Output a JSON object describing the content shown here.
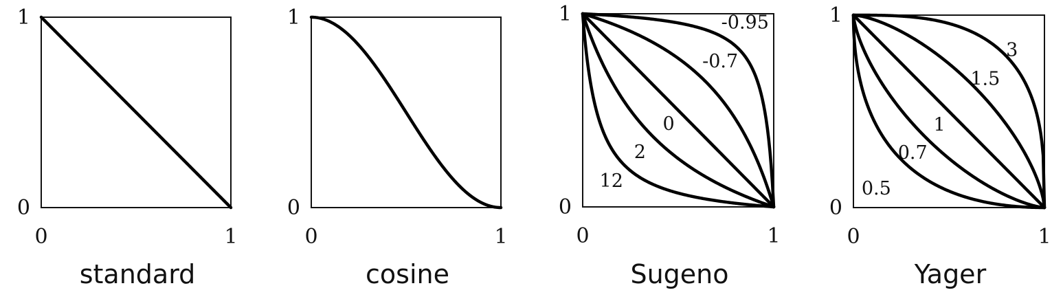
{
  "chart_data": [
    {
      "type": "line",
      "title": "standard",
      "xlim": [
        0,
        1
      ],
      "ylim": [
        0,
        1
      ],
      "xticks": [
        "0",
        "1"
      ],
      "yticks": [
        "0",
        "1"
      ],
      "family": "standard",
      "series": [
        {
          "param": null,
          "label": ""
        }
      ]
    },
    {
      "type": "line",
      "title": "cosine",
      "xlim": [
        0,
        1
      ],
      "ylim": [
        0,
        1
      ],
      "xticks": [
        "0",
        "1"
      ],
      "yticks": [
        "0",
        "1"
      ],
      "family": "cosine",
      "series": [
        {
          "param": null,
          "label": ""
        }
      ]
    },
    {
      "type": "line",
      "title": "Sugeno",
      "xlim": [
        0,
        1
      ],
      "ylim": [
        0,
        1
      ],
      "xticks": [
        "0",
        "1"
      ],
      "yticks": [
        "0",
        "1"
      ],
      "family": "sugeno",
      "series": [
        {
          "param": -0.95,
          "label": "-0.95",
          "label_at": [
            0.85,
            0.955
          ]
        },
        {
          "param": -0.7,
          "label": "-0.7",
          "label_at": [
            0.72,
            0.755
          ]
        },
        {
          "param": 0,
          "label": "0",
          "label_at": [
            0.45,
            0.43
          ]
        },
        {
          "param": 2,
          "label": "2",
          "label_at": [
            0.3,
            0.285
          ]
        },
        {
          "param": 12,
          "label": "12",
          "label_at": [
            0.15,
            0.135
          ]
        }
      ]
    },
    {
      "type": "line",
      "title": "Yager",
      "xlim": [
        0,
        1
      ],
      "ylim": [
        0,
        1
      ],
      "xticks": [
        "0",
        "1"
      ],
      "yticks": [
        "0",
        "1"
      ],
      "family": "yager",
      "series": [
        {
          "param": 3,
          "label": "3",
          "label_at": [
            0.83,
            0.82
          ]
        },
        {
          "param": 1.5,
          "label": "1.5",
          "label_at": [
            0.69,
            0.67
          ]
        },
        {
          "param": 1,
          "label": "1",
          "label_at": [
            0.45,
            0.43
          ]
        },
        {
          "param": 0.7,
          "label": "0.7",
          "label_at": [
            0.31,
            0.285
          ]
        },
        {
          "param": 0.5,
          "label": "0.5",
          "label_at": [
            0.12,
            0.1
          ]
        }
      ]
    }
  ]
}
